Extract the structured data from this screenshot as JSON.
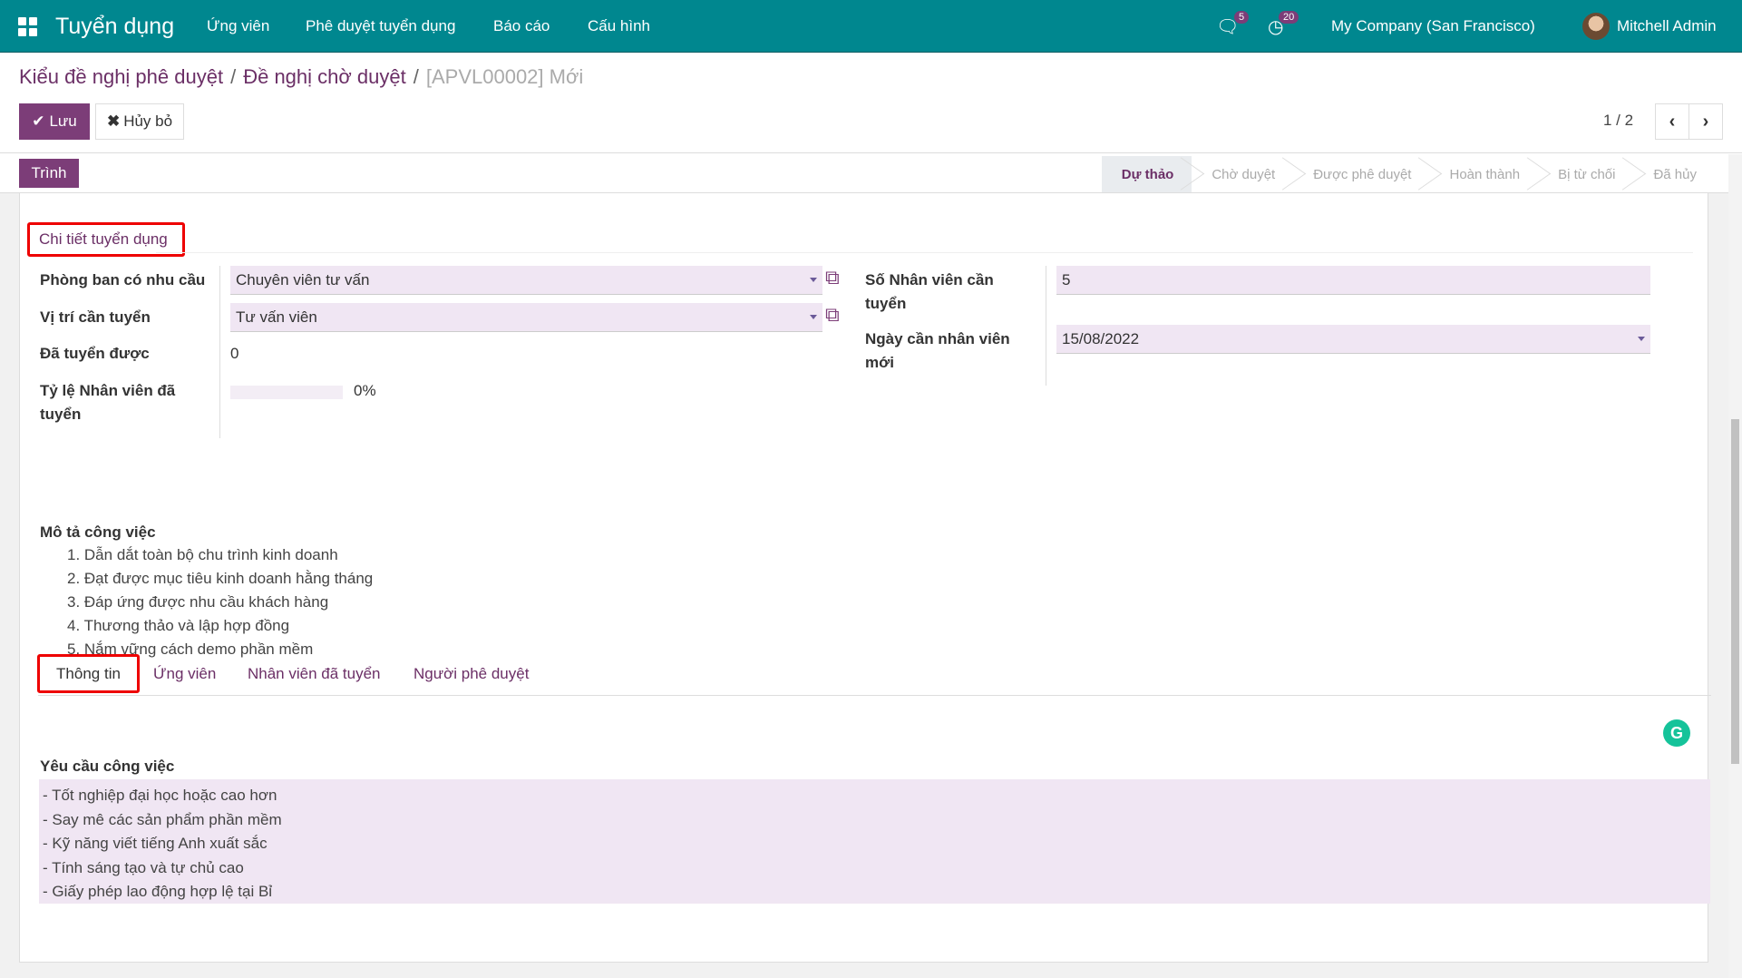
{
  "navbar": {
    "app_name": "Tuyển dụng",
    "menu": [
      "Ứng viên",
      "Phê duyệt tuyển dụng",
      "Báo cáo",
      "Cấu hình"
    ],
    "messages_count": "5",
    "activities_count": "20",
    "company": "My Company (San Francisco)",
    "user": "Mitchell Admin",
    "color": "#00878f"
  },
  "breadcrumb": {
    "items": [
      "Kiểu đề nghị phê duyệt",
      "Đề nghị chờ duyệt"
    ],
    "current": "[APVL00002] Mới"
  },
  "toolbar": {
    "save_label": "Lưu",
    "discard_label": "Hủy bỏ",
    "pager": "1 / 2",
    "submit_label": "Trình"
  },
  "statusbar": {
    "stages": [
      "Dự thảo",
      "Chờ duyệt",
      "Được phê duyệt",
      "Hoàn thành",
      "Bị từ chối",
      "Đã hủy"
    ],
    "active": "Dự thảo"
  },
  "form": {
    "section_title": "Chi tiết tuyển dụng",
    "department_label": "Phòng ban có nhu cầu",
    "department_value": "Chuyên viên tư vấn",
    "position_label": "Vị trí cần tuyển",
    "position_value": "Tư vấn viên",
    "hired_label": "Đã tuyển được",
    "hired_value": "0",
    "ratio_label": "Tỷ lệ Nhân viên đã tuyển",
    "ratio_value": "0%",
    "ratio_percent": 0,
    "count_label": "Số Nhân viên cần tuyển",
    "count_value": "5",
    "date_label": "Ngày cần nhân viên mới",
    "date_value": "15/08/2022"
  },
  "tabs": [
    "Thông tin",
    "Ứng viên",
    "Nhân viên đã tuyển",
    "Người phê duyệt"
  ],
  "info": {
    "description_label": "Mô tả công việc",
    "description_items": [
      "Dẫn dắt toàn bộ chu trình kinh doanh",
      "Đạt được mục tiêu kinh doanh hằng tháng",
      "Đáp ứng được nhu cầu khách hàng",
      "Thương thảo và lập hợp đồng",
      "Nắm vững cách demo phần mềm"
    ],
    "requirements_label": "Yêu cầu công việc",
    "requirements": [
      "- Tốt nghiệp đại học hoặc cao hơn",
      "- Say mê các sản phẩm phần mềm",
      "- Kỹ năng viết tiếng Anh xuất sắc",
      "- Tính sáng tạo và tự chủ cao",
      "- Giấy phép lao động hợp lệ tại Bỉ"
    ]
  }
}
